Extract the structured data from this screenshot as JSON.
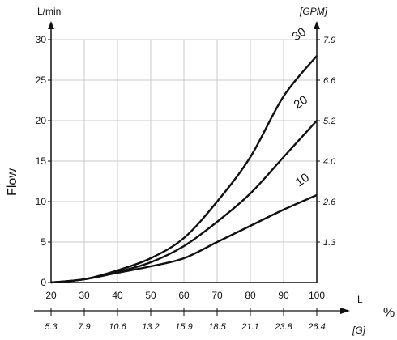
{
  "chart_data": {
    "type": "line",
    "ylabel": "Flow",
    "left_axis_unit": "L/min",
    "right_axis_unit": "[GPM]",
    "x_unit": "L",
    "x_percent_symbol": "%",
    "bottom_axis_unit": "[G]",
    "xlim": [
      20,
      100
    ],
    "ylim": [
      0,
      30
    ],
    "grid": true,
    "x_ticks": [
      20,
      30,
      40,
      50,
      60,
      70,
      80,
      90,
      100
    ],
    "y_ticks": [
      0,
      5,
      10,
      15,
      20,
      25,
      30
    ],
    "right_ticks": [
      {
        "label": "1.3",
        "y": 5
      },
      {
        "label": "2.6",
        "y": 10
      },
      {
        "label": "4.0",
        "y": 15
      },
      {
        "label": "5.2",
        "y": 20
      },
      {
        "label": "6.6",
        "y": 25
      },
      {
        "label": "7.9",
        "y": 30
      }
    ],
    "bottom_ticks": [
      "5.3",
      "7.9",
      "10.6",
      "13.2",
      "15.9",
      "18.5",
      "21.1",
      "23.8",
      "26.4"
    ],
    "series": [
      {
        "name": "10",
        "x": [
          20,
          30,
          40,
          50,
          60,
          70,
          80,
          90,
          100
        ],
        "y": [
          0,
          0.4,
          1.2,
          2.0,
          3.0,
          5.0,
          7.0,
          9.0,
          10.8
        ]
      },
      {
        "name": "20",
        "x": [
          20,
          30,
          40,
          50,
          60,
          70,
          80,
          90,
          100
        ],
        "y": [
          0,
          0.4,
          1.3,
          2.5,
          4.5,
          7.5,
          11.0,
          15.5,
          20.0
        ]
      },
      {
        "name": "30",
        "x": [
          20,
          30,
          40,
          50,
          60,
          70,
          80,
          90,
          100
        ],
        "y": [
          0,
          0.4,
          1.5,
          3.0,
          5.5,
          10.0,
          15.5,
          23.0,
          28.0
        ]
      }
    ]
  }
}
